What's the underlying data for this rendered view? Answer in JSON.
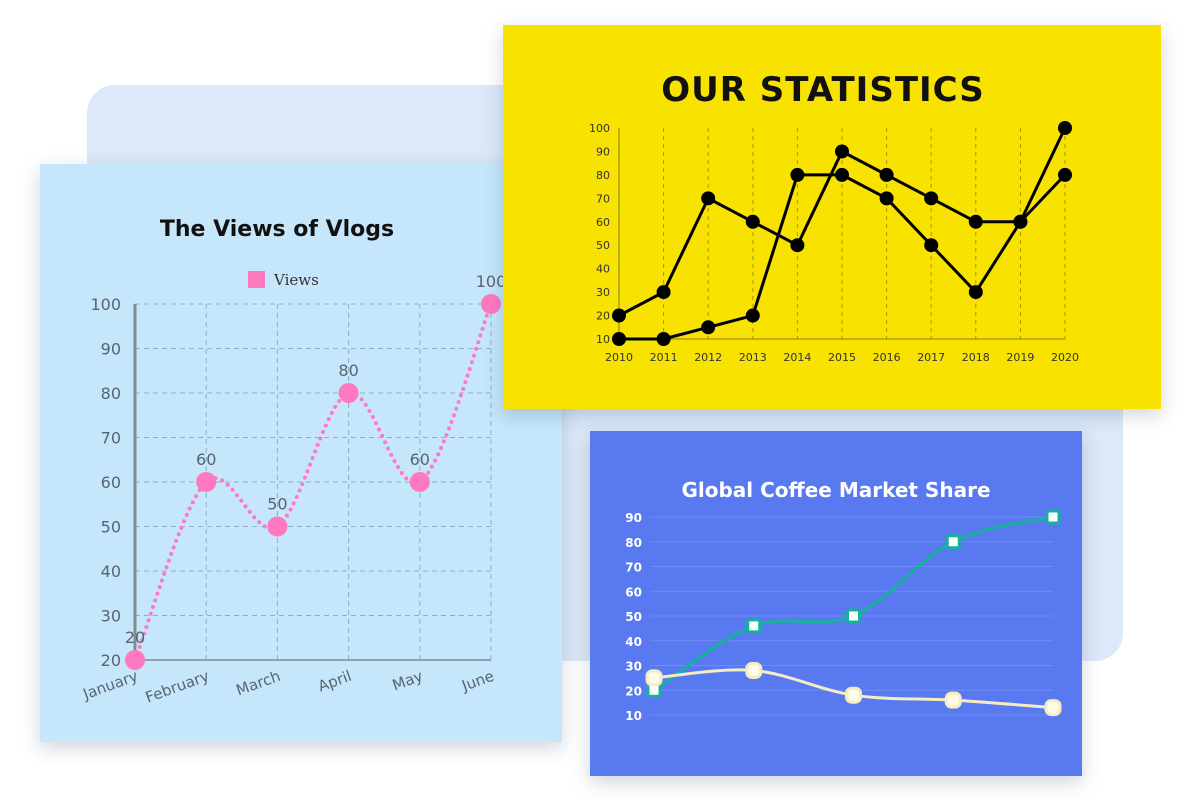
{
  "chart_data": [
    {
      "id": "views",
      "type": "line",
      "title": "The Views of Vlogs",
      "legend": {
        "position": "top-center"
      },
      "categories": [
        "January",
        "February",
        "March",
        "April",
        "May",
        "June"
      ],
      "series": [
        {
          "name": "Views",
          "values": [
            20,
            60,
            50,
            80,
            60,
            100
          ],
          "color": "#ff79c0",
          "style": "dotted-smooth"
        }
      ],
      "data_labels": [
        "20",
        "60",
        "50",
        "80",
        "60",
        "100"
      ],
      "ylim": [
        20,
        100
      ],
      "yticks": [
        "20",
        "30",
        "40",
        "50",
        "60",
        "70",
        "80",
        "90",
        "100"
      ],
      "grid": true
    },
    {
      "id": "stats",
      "type": "line",
      "title": "OUR STATISTICS",
      "categories": [
        "2010",
        "2011",
        "2012",
        "2013",
        "2014",
        "2015",
        "2016",
        "2017",
        "2018",
        "2019",
        "2020"
      ],
      "series": [
        {
          "values": [
            20,
            30,
            70,
            60,
            50,
            90,
            80,
            70,
            60,
            60,
            100
          ],
          "color": "#000000"
        },
        {
          "values": [
            10,
            10,
            15,
            20,
            80,
            80,
            70,
            50,
            30,
            60,
            80
          ],
          "color": "#000000"
        }
      ],
      "ylim": [
        10,
        100
      ],
      "yticks": [
        "10",
        "20",
        "30",
        "40",
        "50",
        "60",
        "70",
        "80",
        "90",
        "100"
      ],
      "grid": true
    },
    {
      "id": "coffee",
      "type": "line",
      "title": "Global Coffee Market Share",
      "x": [
        1,
        2,
        3,
        4,
        5
      ],
      "series": [
        {
          "values": [
            20,
            46,
            50,
            80,
            90
          ],
          "color": "#14b39a",
          "style": "smooth"
        },
        {
          "values": [
            25,
            28,
            18,
            16,
            13
          ],
          "color": "#f4ecc2",
          "style": "smooth"
        }
      ],
      "ylim": [
        10,
        90
      ],
      "yticks": [
        "10",
        "20",
        "30",
        "40",
        "50",
        "60",
        "70",
        "80",
        "90"
      ],
      "grid": true
    }
  ]
}
